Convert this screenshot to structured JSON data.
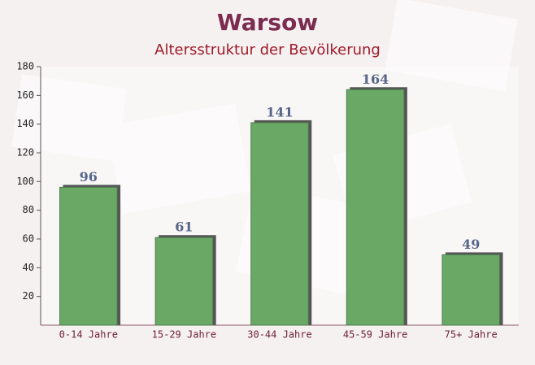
{
  "chart_data": {
    "type": "bar",
    "title": "Warsow",
    "subtitle": "Altersstruktur der Bevölkerung",
    "categories": [
      "0-14 Jahre",
      "15-29 Jahre",
      "30-44 Jahre",
      "45-59 Jahre",
      "75+ Jahre"
    ],
    "values": [
      96,
      61,
      141,
      164,
      49
    ],
    "color": "#6aa866",
    "ylim": [
      0,
      180
    ],
    "yticks": [
      20,
      40,
      60,
      80,
      100,
      120,
      140,
      160,
      180
    ],
    "grid": false
  }
}
